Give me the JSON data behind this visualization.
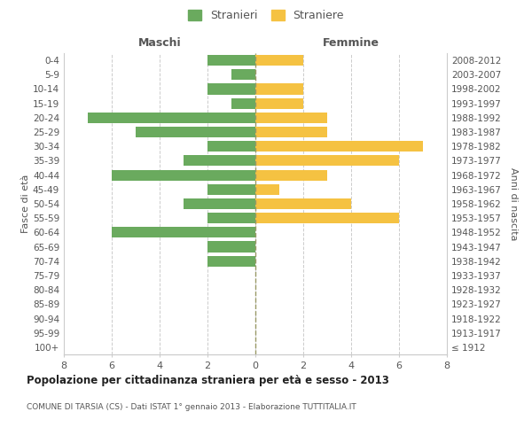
{
  "age_groups": [
    "100+",
    "95-99",
    "90-94",
    "85-89",
    "80-84",
    "75-79",
    "70-74",
    "65-69",
    "60-64",
    "55-59",
    "50-54",
    "45-49",
    "40-44",
    "35-39",
    "30-34",
    "25-29",
    "20-24",
    "15-19",
    "10-14",
    "5-9",
    "0-4"
  ],
  "birth_years": [
    "≤ 1912",
    "1913-1917",
    "1918-1922",
    "1923-1927",
    "1928-1932",
    "1933-1937",
    "1938-1942",
    "1943-1947",
    "1948-1952",
    "1953-1957",
    "1958-1962",
    "1963-1967",
    "1968-1972",
    "1973-1977",
    "1978-1982",
    "1983-1987",
    "1988-1992",
    "1993-1997",
    "1998-2002",
    "2003-2007",
    "2008-2012"
  ],
  "males": [
    0,
    0,
    0,
    0,
    0,
    0,
    2,
    2,
    6,
    2,
    3,
    2,
    6,
    3,
    2,
    5,
    7,
    1,
    2,
    1,
    2
  ],
  "females": [
    0,
    0,
    0,
    0,
    0,
    0,
    0,
    0,
    0,
    6,
    4,
    1,
    3,
    6,
    7,
    3,
    3,
    2,
    2,
    0,
    2
  ],
  "male_color": "#6aaa5e",
  "female_color": "#f5c242",
  "title": "Popolazione per cittadinanza straniera per età e sesso - 2013",
  "subtitle": "COMUNE DI TARSIA (CS) - Dati ISTAT 1° gennaio 2013 - Elaborazione TUTTITALIA.IT",
  "xlabel_left": "Maschi",
  "xlabel_right": "Femmine",
  "ylabel_left": "Fasce di età",
  "ylabel_right": "Anni di nascita",
  "legend_male": "Stranieri",
  "legend_female": "Straniere",
  "xlim": 8,
  "background_color": "#ffffff",
  "grid_color": "#cccccc",
  "text_color": "#555555"
}
